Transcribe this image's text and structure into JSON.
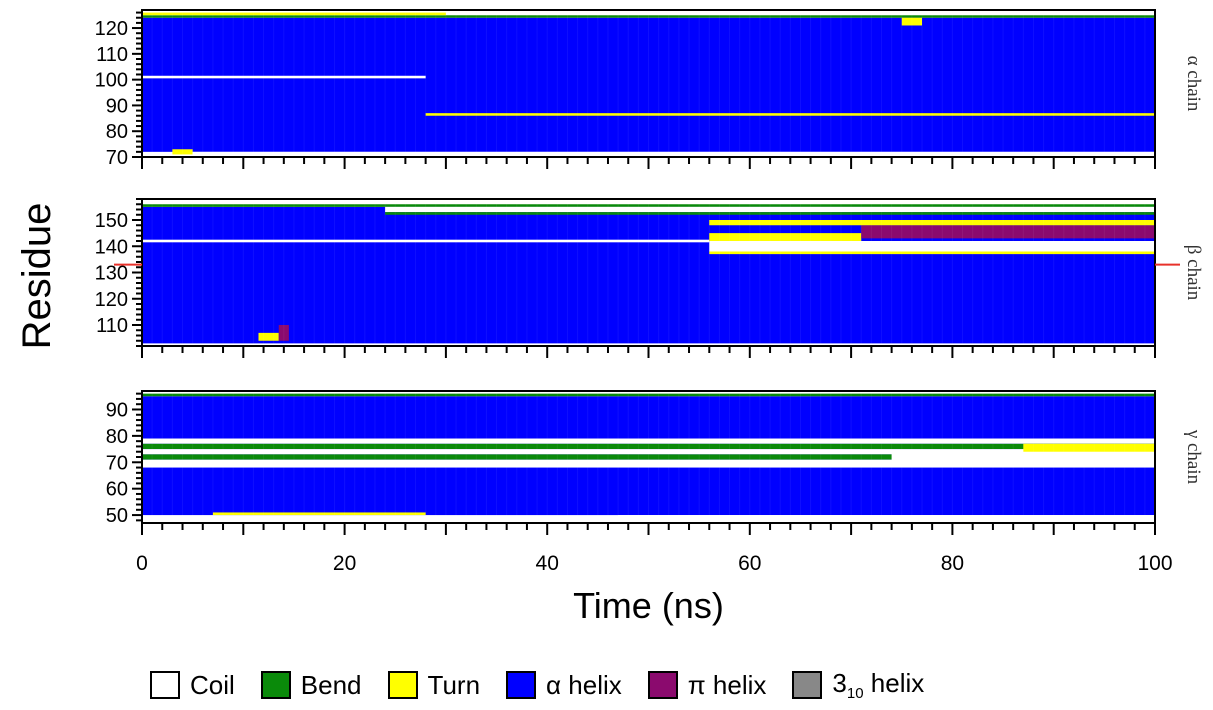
{
  "chart_data": {
    "type": "heatmap",
    "xlabel": "Time (ns)",
    "ylabel": "Residue",
    "xlim": [
      0,
      100
    ],
    "x_ticks": [
      "0",
      "20",
      "40",
      "60",
      "80",
      "100"
    ],
    "categories": [
      "Coil",
      "Bend",
      "Turn",
      "α helix",
      "π helix",
      "3₁₀ helix"
    ],
    "colors": {
      "Coil": "#ffffff",
      "Bend": "#0a8a0a",
      "Turn": "#ffff00",
      "α helix": "#0000ff",
      "π helix": "#8b0a6e",
      "3₁₀ helix": "#888888"
    },
    "panels": [
      {
        "name": "α chain",
        "ylim": [
          70,
          127
        ],
        "y_ticks": [
          70,
          80,
          90,
          100,
          110,
          120
        ],
        "regions": [
          {
            "x": [
              0,
              100
            ],
            "y": [
              72,
              124
            ],
            "state": "α helix"
          },
          {
            "x": [
              0,
              100
            ],
            "y": [
              124,
              125
            ],
            "state": "Bend"
          },
          {
            "x": [
              0,
              100
            ],
            "y": [
              125,
              127
            ],
            "state": "Coil"
          },
          {
            "x": [
              0,
              30
            ],
            "y": [
              125,
              126
            ],
            "state": "Turn"
          },
          {
            "x": [
              75,
              77
            ],
            "y": [
              121,
              124
            ],
            "state": "Turn"
          },
          {
            "x": [
              0,
              28
            ],
            "y": [
              100.5,
              101.5
            ],
            "state": "Coil"
          },
          {
            "x": [
              28,
              100
            ],
            "y": [
              86,
              87
            ],
            "state": "Turn"
          },
          {
            "x": [
              3,
              5
            ],
            "y": [
              71,
              73
            ],
            "state": "Turn"
          },
          {
            "x": [
              5,
              100
            ],
            "y": [
              70,
              72
            ],
            "state": "Coil"
          }
        ]
      },
      {
        "name": "β chain",
        "ylim": [
          102,
          158
        ],
        "y_ticks": [
          110,
          120,
          130,
          140,
          150
        ],
        "marker_residue": 133,
        "regions": [
          {
            "x": [
              0,
              100
            ],
            "y": [
              103,
              155
            ],
            "state": "α helix"
          },
          {
            "x": [
              0,
              100
            ],
            "y": [
              155,
              156
            ],
            "state": "Bend"
          },
          {
            "x": [
              24,
              100
            ],
            "y": [
              153,
              155
            ],
            "state": "Coil"
          },
          {
            "x": [
              24,
              100
            ],
            "y": [
              152,
              153
            ],
            "state": "Bend"
          },
          {
            "x": [
              0,
              56
            ],
            "y": [
              141.5,
              142.5
            ],
            "state": "Coil"
          },
          {
            "x": [
              56,
              100
            ],
            "y": [
              138,
              142
            ],
            "state": "Coil"
          },
          {
            "x": [
              56,
              100
            ],
            "y": [
              137,
              138
            ],
            "state": "Turn"
          },
          {
            "x": [
              56,
              71
            ],
            "y": [
              142,
              145
            ],
            "state": "Turn"
          },
          {
            "x": [
              71,
              100
            ],
            "y": [
              143,
              148
            ],
            "state": "π helix"
          },
          {
            "x": [
              56,
              100
            ],
            "y": [
              148,
              150
            ],
            "state": "Turn"
          },
          {
            "x": [
              11.5,
              13.5
            ],
            "y": [
              104,
              107
            ],
            "state": "Turn"
          },
          {
            "x": [
              13.5,
              14.5
            ],
            "y": [
              104,
              110
            ],
            "state": "π helix"
          }
        ]
      },
      {
        "name": "γ chain",
        "ylim": [
          47,
          97
        ],
        "y_ticks": [
          50,
          60,
          70,
          80,
          90
        ],
        "regions": [
          {
            "x": [
              0,
              100
            ],
            "y": [
              50,
              95
            ],
            "state": "α helix"
          },
          {
            "x": [
              0,
              100
            ],
            "y": [
              95,
              96
            ],
            "state": "Bend"
          },
          {
            "x": [
              0,
              100
            ],
            "y": [
              77,
              79
            ],
            "state": "Coil"
          },
          {
            "x": [
              0,
              100
            ],
            "y": [
              75,
              77
            ],
            "state": "Bend"
          },
          {
            "x": [
              0,
              100
            ],
            "y": [
              73,
              75
            ],
            "state": "Coil"
          },
          {
            "x": [
              0,
              100
            ],
            "y": [
              71,
              73
            ],
            "state": "Bend"
          },
          {
            "x": [
              0,
              100
            ],
            "y": [
              68,
              71
            ],
            "state": "Coil"
          },
          {
            "x": [
              74,
              100
            ],
            "y": [
              69,
              74
            ],
            "state": "Coil"
          },
          {
            "x": [
              87,
              100
            ],
            "y": [
              74,
              77
            ],
            "state": "Turn"
          },
          {
            "x": [
              7,
              28
            ],
            "y": [
              50,
              51
            ],
            "state": "Turn"
          },
          {
            "x": [
              47,
              100
            ],
            "y": [
              48,
              50
            ],
            "state": "Coil"
          }
        ]
      }
    ]
  },
  "legend": [
    {
      "label": "Coil",
      "color": "#ffffff"
    },
    {
      "label": "Bend",
      "color": "#0a8a0a"
    },
    {
      "label": "Turn",
      "color": "#ffff00"
    },
    {
      "label": "α helix",
      "color": "#0000ff"
    },
    {
      "label": "π helix",
      "color": "#8b0a6e"
    },
    {
      "label": "3",
      "sub": "10",
      "tail": " helix",
      "color": "#888888"
    }
  ]
}
